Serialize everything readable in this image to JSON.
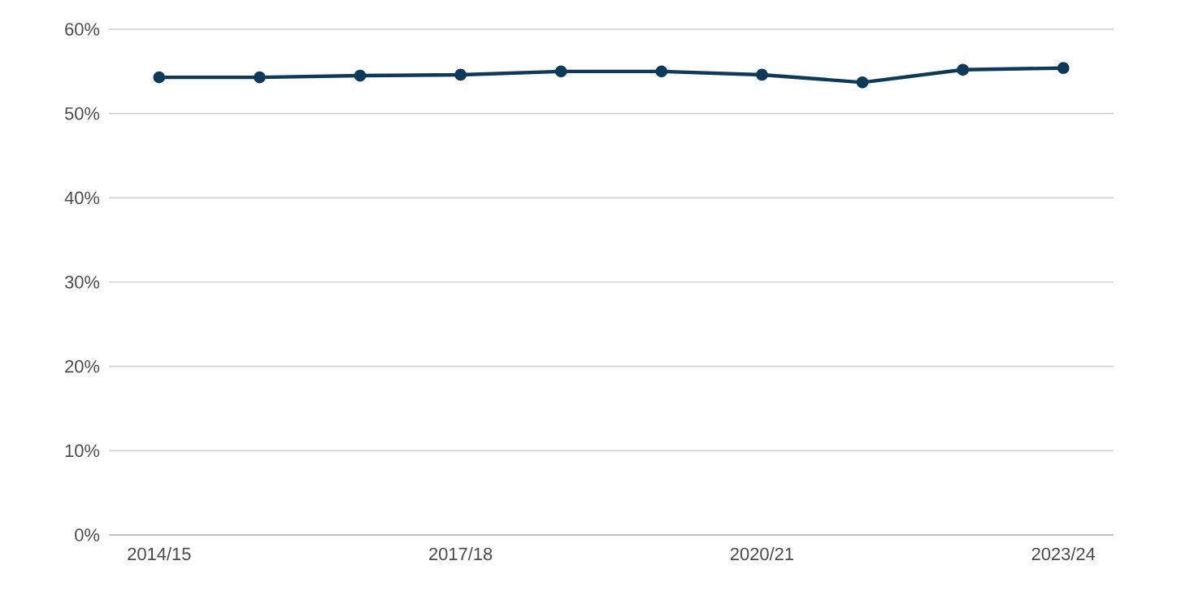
{
  "chart_data": {
    "type": "line",
    "categories": [
      "2014/15",
      null,
      null,
      "2017/18",
      null,
      null,
      "2020/21",
      null,
      null,
      "2023/24"
    ],
    "series": [
      {
        "color": "#0e3a5a",
        "values": [
          54.3,
          54.3,
          54.5,
          54.6,
          55.0,
          55.0,
          54.6,
          53.7,
          55.2,
          55.4
        ]
      }
    ],
    "ylim": [
      0,
      60
    ],
    "yticks": [
      {
        "value": 0,
        "label": "0%"
      },
      {
        "value": 10,
        "label": "10%"
      },
      {
        "value": 20,
        "label": "20%"
      },
      {
        "value": 30,
        "label": "30%"
      },
      {
        "value": 40,
        "label": "40%"
      },
      {
        "value": 50,
        "label": "50%"
      },
      {
        "value": 60,
        "label": "60%"
      }
    ],
    "grid": "y",
    "marker": "circle",
    "line_style": "solid"
  }
}
